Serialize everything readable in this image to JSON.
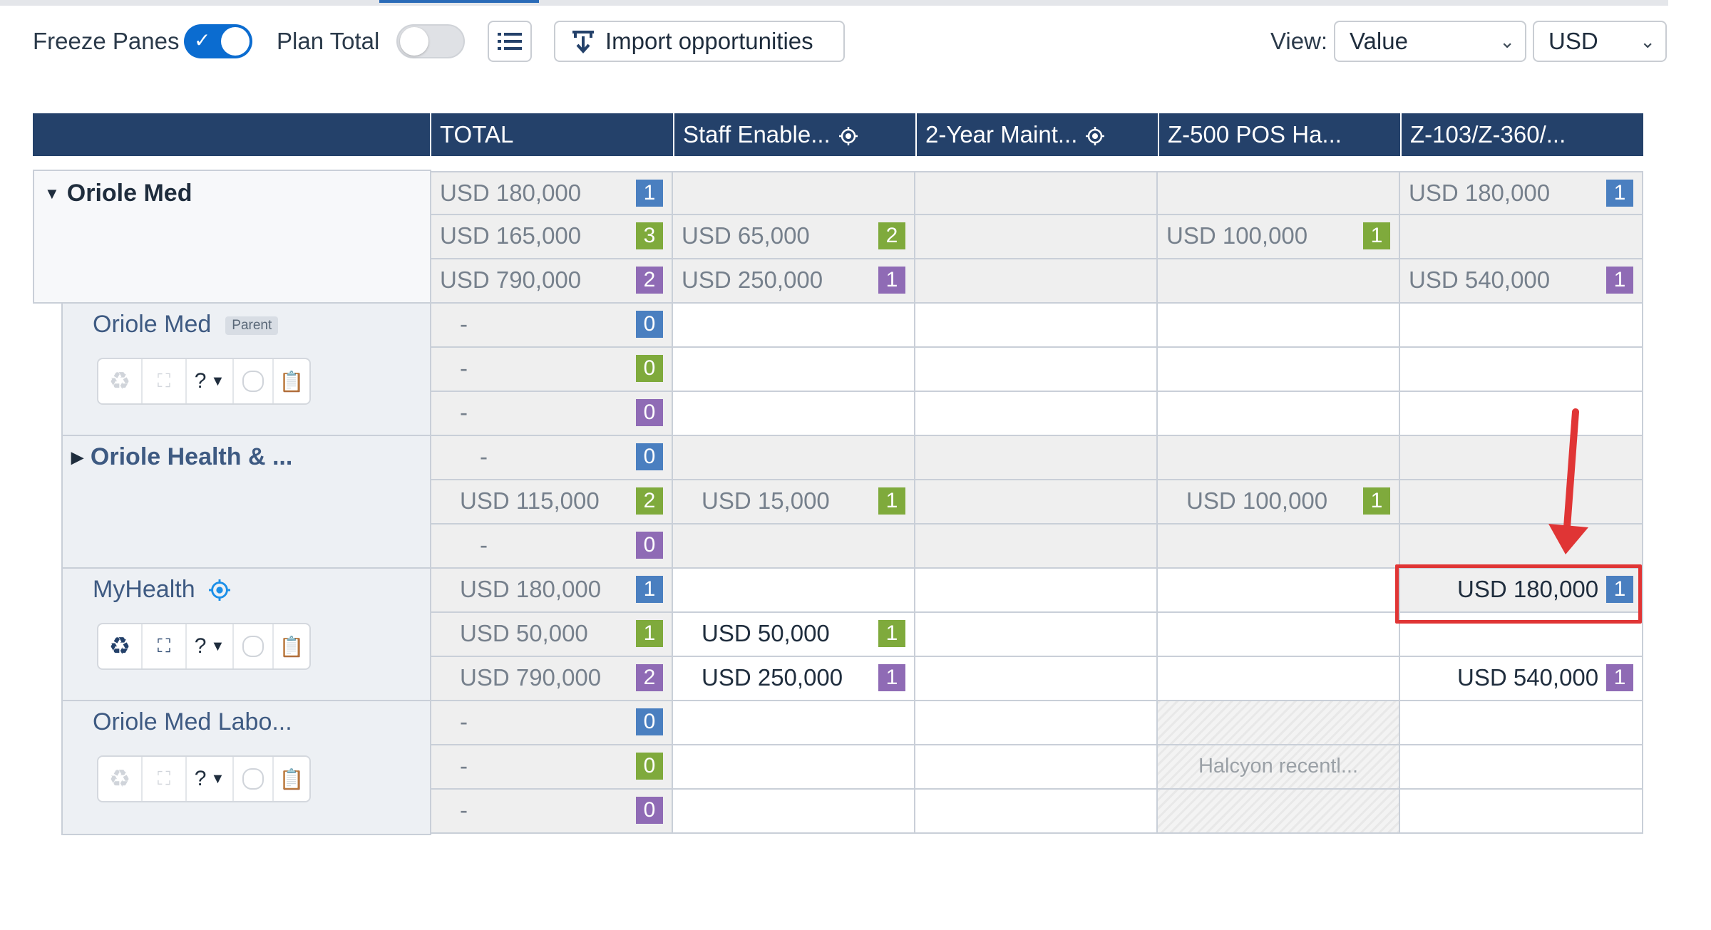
{
  "toolbar": {
    "freeze_panes_label": "Freeze Panes",
    "freeze_panes_on": true,
    "plan_total_label": "Plan Total",
    "plan_total_on": false,
    "import_label": "Import opportunities",
    "view_label": "View:",
    "view_value": "Value",
    "currency_value": "USD"
  },
  "grid": {
    "columns": [
      "TOTAL",
      "Staff Enable...",
      "2-Year Maint...",
      "Z-500 POS Ha...",
      "Z-103/Z-360/..."
    ],
    "accounts": [
      {
        "name": "Oriole Med",
        "rows": [
          [
            {
              "v": "USD 180,000",
              "b": "1"
            },
            {
              "v": ""
            },
            {
              "v": ""
            },
            {
              "v": ""
            },
            {
              "v": "USD 180,000",
              "b": "1"
            }
          ],
          [
            {
              "v": "USD 165,000",
              "b": "3"
            },
            {
              "v": "USD 65,000",
              "b": "2"
            },
            {
              "v": ""
            },
            {
              "v": "USD 100,000",
              "b": "1"
            },
            {
              "v": ""
            }
          ],
          [
            {
              "v": "USD 790,000",
              "b": "2"
            },
            {
              "v": "USD 250,000",
              "b": "1"
            },
            {
              "v": ""
            },
            {
              "v": ""
            },
            {
              "v": "USD 540,000",
              "b": "1"
            }
          ]
        ]
      },
      {
        "name": "Oriole Med",
        "tag": "Parent",
        "rows": [
          [
            {
              "v": "-",
              "b": "0"
            },
            {
              "v": ""
            },
            {
              "v": ""
            },
            {
              "v": ""
            },
            {
              "v": ""
            }
          ],
          [
            {
              "v": "-",
              "b": "0"
            },
            {
              "v": ""
            },
            {
              "v": ""
            },
            {
              "v": ""
            },
            {
              "v": ""
            }
          ],
          [
            {
              "v": "-",
              "b": "0"
            },
            {
              "v": ""
            },
            {
              "v": ""
            },
            {
              "v": ""
            },
            {
              "v": ""
            }
          ]
        ]
      },
      {
        "name": "Oriole Health & ...",
        "rows": [
          [
            {
              "v": "-",
              "b": "0"
            },
            {
              "v": ""
            },
            {
              "v": ""
            },
            {
              "v": ""
            },
            {
              "v": ""
            }
          ],
          [
            {
              "v": "USD 115,000",
              "b": "2"
            },
            {
              "v": "USD 15,000",
              "b": "1"
            },
            {
              "v": ""
            },
            {
              "v": "USD 100,000",
              "b": "1"
            },
            {
              "v": ""
            }
          ],
          [
            {
              "v": "-",
              "b": "0"
            },
            {
              "v": ""
            },
            {
              "v": ""
            },
            {
              "v": ""
            },
            {
              "v": ""
            }
          ]
        ]
      },
      {
        "name": "MyHealth",
        "rows": [
          [
            {
              "v": "USD 180,000",
              "b": "1"
            },
            {
              "v": ""
            },
            {
              "v": ""
            },
            {
              "v": ""
            },
            {
              "v": "USD 180,000",
              "b": "1"
            }
          ],
          [
            {
              "v": "USD 50,000",
              "b": "1"
            },
            {
              "v": "USD 50,000",
              "b": "1"
            },
            {
              "v": ""
            },
            {
              "v": ""
            },
            {
              "v": ""
            }
          ],
          [
            {
              "v": "USD 790,000",
              "b": "2"
            },
            {
              "v": "USD 250,000",
              "b": "1"
            },
            {
              "v": ""
            },
            {
              "v": ""
            },
            {
              "v": "USD 540,000",
              "b": "1"
            }
          ]
        ]
      },
      {
        "name": "Oriole Med Labo...",
        "rows": [
          [
            {
              "v": "-",
              "b": "0"
            },
            {
              "v": ""
            },
            {
              "v": ""
            },
            {
              "v": ""
            },
            {
              "v": ""
            }
          ],
          [
            {
              "v": "-",
              "b": "0"
            },
            {
              "v": ""
            },
            {
              "v": ""
            },
            {
              "v": "Halcyon recentl..."
            },
            {
              "v": ""
            }
          ],
          [
            {
              "v": "-",
              "b": "0"
            },
            {
              "v": ""
            },
            {
              "v": ""
            },
            {
              "v": ""
            },
            {
              "v": ""
            }
          ]
        ]
      }
    ],
    "icon_question": "?"
  },
  "colors": {
    "header_bg": "#24416a",
    "badge_row1": "#4a7fc0",
    "badge_row2": "#7faa3c",
    "badge_row3": "#8f6bb5",
    "highlight": "#e03535"
  }
}
